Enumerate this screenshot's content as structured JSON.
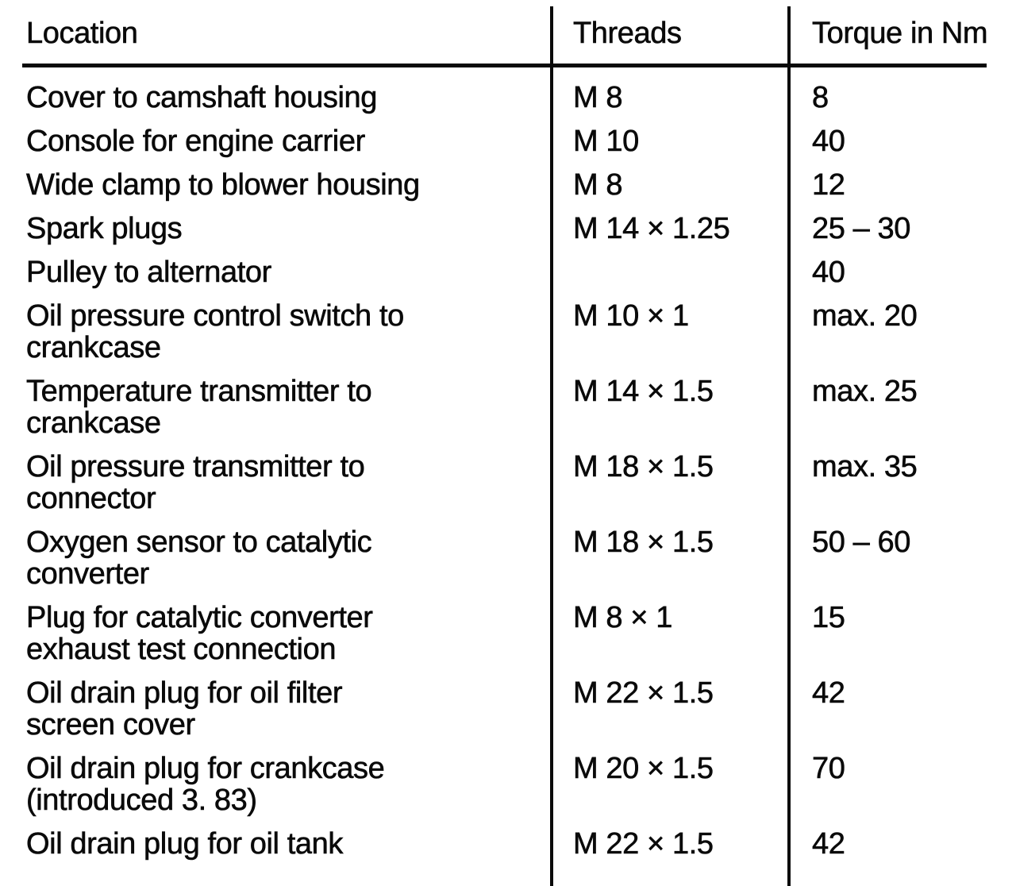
{
  "page": {
    "background_color": "#ffffff",
    "ink_color": "#0a0a0a"
  },
  "table": {
    "columns": [
      {
        "key": "location",
        "label": "Location"
      },
      {
        "key": "threads",
        "label": "Threads"
      },
      {
        "key": "torque",
        "label": "Torque in Nm"
      }
    ],
    "rows": [
      {
        "location": "Cover to camshaft housing",
        "threads": "M 8",
        "torque": "8"
      },
      {
        "location": "Console for engine carrier",
        "threads": "M 10",
        "torque": "40"
      },
      {
        "location": "Wide clamp to blower housing",
        "threads": "M 8",
        "torque": "12"
      },
      {
        "location": "Spark plugs",
        "threads": "M 14 × 1.25",
        "torque": "25 – 30"
      },
      {
        "location": "Pulley to alternator",
        "threads": "",
        "torque": "40"
      },
      {
        "location": "Oil pressure control switch to\ncrankcase",
        "threads": "M 10 × 1",
        "torque": "max. 20"
      },
      {
        "location": "Temperature transmitter to\ncrankcase",
        "threads": "M 14 × 1.5",
        "torque": "max. 25"
      },
      {
        "location": "Oil pressure transmitter to\nconnector",
        "threads": "M 18 × 1.5",
        "torque": "max. 35"
      },
      {
        "location": "Oxygen sensor to catalytic\nconverter",
        "threads": "M 18 × 1.5",
        "torque": "50 – 60"
      },
      {
        "location": "Plug for catalytic converter\nexhaust test connection",
        "threads": "M 8 × 1",
        "torque": "15"
      },
      {
        "location": "Oil drain plug for oil filter\nscreen cover",
        "threads": "M 22 × 1.5",
        "torque": "42"
      },
      {
        "location": "Oil drain plug for crankcase\n(introduced 3. 83)",
        "threads": "M 20 × 1.5",
        "torque": "70"
      },
      {
        "location": "Oil drain plug for oil tank",
        "threads": "M 22 × 1.5",
        "torque": "42"
      }
    ]
  }
}
